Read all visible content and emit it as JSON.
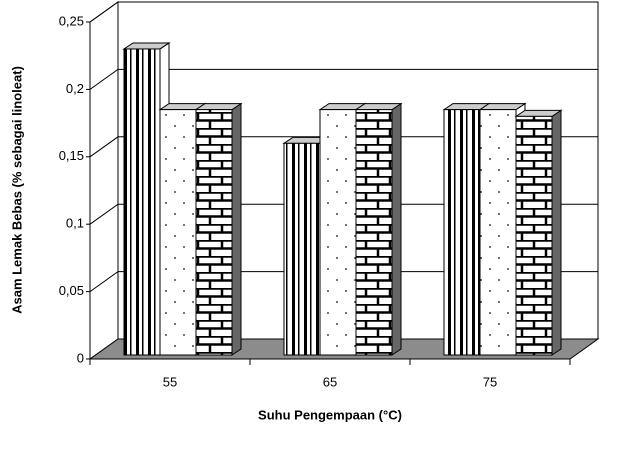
{
  "chart_data": {
    "type": "bar3d",
    "y_label": "Asam Lemak Bebas (% sebagai linoleat)",
    "x_label": "Suhu Pengempaan (°C)",
    "categories": [
      "55",
      "65",
      "75"
    ],
    "series": [
      {
        "pattern": "vertical-stripes",
        "values": [
          0.23,
          0.16,
          0.185
        ]
      },
      {
        "pattern": "dots",
        "values": [
          0.185,
          0.185,
          0.185
        ]
      },
      {
        "pattern": "bricks",
        "values": [
          0.185,
          0.185,
          0.18
        ]
      }
    ],
    "ylim": [
      0,
      0.25
    ],
    "yticks": [
      {
        "value": 0,
        "label": "0"
      },
      {
        "value": 0.05,
        "label": "0,05"
      },
      {
        "value": 0.1,
        "label": "0,1"
      },
      {
        "value": 0.15,
        "label": "0,15"
      },
      {
        "value": 0.2,
        "label": "0,2"
      },
      {
        "value": 0.25,
        "label": "0,25"
      }
    ],
    "grid": true,
    "floor_color": "#8c8c8c"
  }
}
